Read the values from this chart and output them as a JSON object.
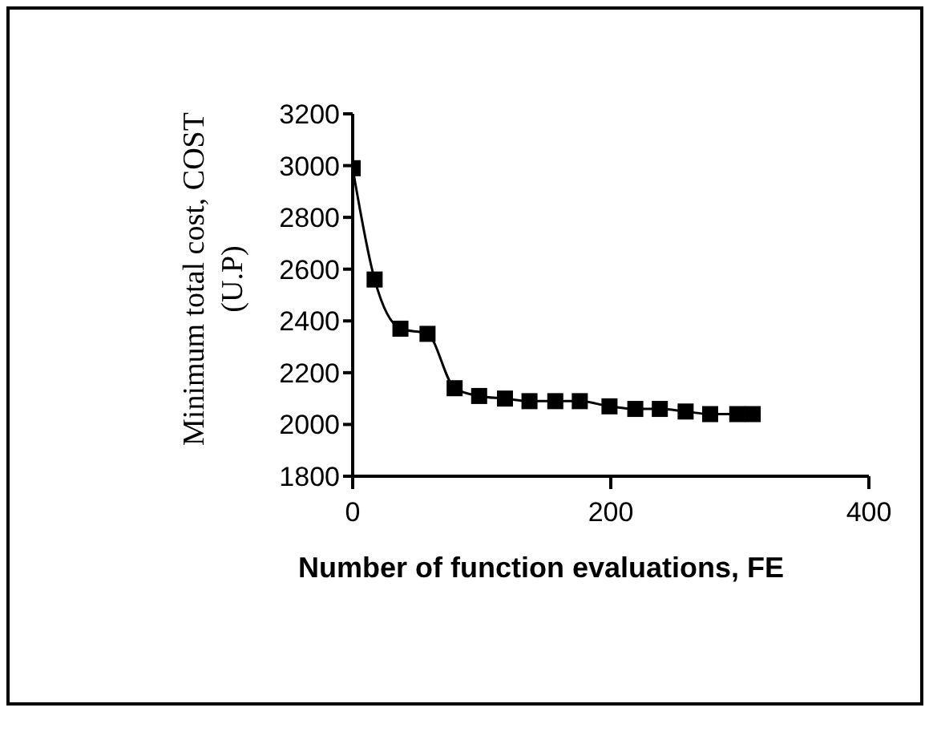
{
  "chart_data": {
    "type": "line",
    "xlabel": "Number of function evaluations, FE",
    "ylabel": "Minimum total cost, COST (U.P)",
    "x": [
      0,
      17,
      37,
      58,
      79,
      98,
      118,
      137,
      157,
      176,
      199,
      219,
      238,
      258,
      277,
      298,
      310
    ],
    "series": [
      {
        "color": "#000000",
        "values": [
          2990,
          2560,
          2370,
          2350,
          2140,
          2110,
          2100,
          2090,
          2090,
          2090,
          2070,
          2060,
          2060,
          2050,
          2040,
          2040,
          2040
        ]
      }
    ],
    "xlim": [
      0,
      400
    ],
    "xticks": [
      0,
      200,
      400
    ],
    "ylim": [
      1800,
      3200
    ],
    "yticks": [
      1800,
      2000,
      2200,
      2400,
      2600,
      2800,
      3000,
      3200
    ],
    "grid": false,
    "legend": false,
    "marker": "square",
    "line_style": "solid"
  }
}
